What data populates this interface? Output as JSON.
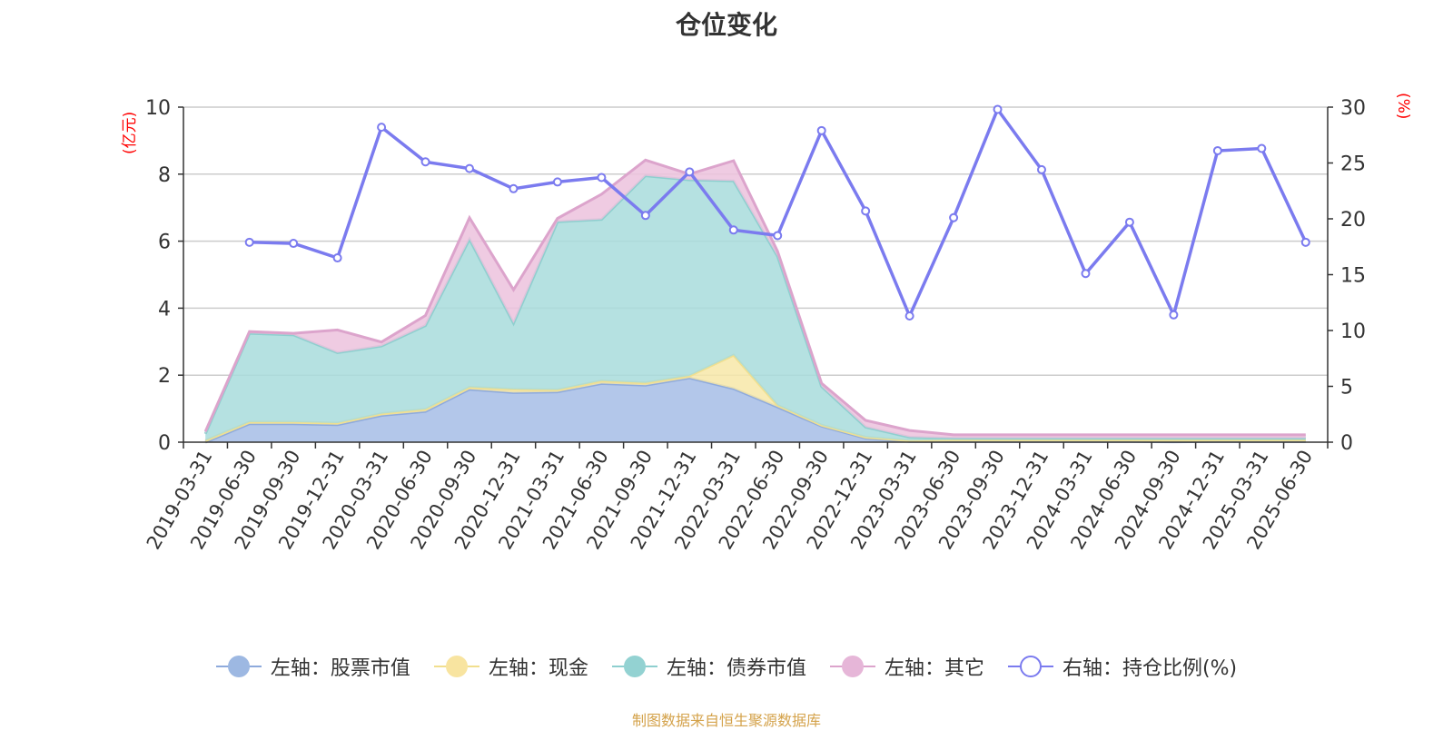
{
  "chart_data": {
    "type": "area",
    "title": "仓位变化",
    "left_unit": "(亿元)",
    "right_unit": "(%)",
    "categories": [
      "2019-03-31",
      "2019-06-30",
      "2019-09-30",
      "2019-12-31",
      "2020-03-31",
      "2020-06-30",
      "2020-09-30",
      "2020-12-31",
      "2021-03-31",
      "2021-06-30",
      "2021-09-30",
      "2021-12-31",
      "2022-03-31",
      "2022-06-30",
      "2022-09-30",
      "2022-12-31",
      "2023-03-31",
      "2023-06-30",
      "2023-09-30",
      "2023-12-31",
      "2024-03-31",
      "2024-06-30",
      "2024-09-30",
      "2024-12-31",
      "2025-03-31",
      "2025-06-30"
    ],
    "left_axis": {
      "min": 0,
      "max": 10,
      "ticks": [
        "0",
        "2",
        "4",
        "6",
        "8",
        "10"
      ]
    },
    "right_axis": {
      "min": 0,
      "max": 30,
      "ticks": [
        "0",
        "5",
        "10",
        "15",
        "20",
        "25",
        "30"
      ]
    },
    "series": [
      {
        "name": "左轴：股票市值",
        "axis": "left",
        "kind": "area",
        "color": "#a6bde6",
        "values": [
          0,
          0.55,
          0.55,
          0.52,
          0.8,
          0.92,
          1.58,
          1.48,
          1.5,
          1.75,
          1.7,
          1.92,
          1.6,
          1.05,
          0.48,
          0.12,
          0.02,
          0.02,
          0.02,
          0.02,
          0.02,
          0.02,
          0.01,
          0.02,
          0.02,
          0.02
        ]
      },
      {
        "name": "左轴：现金",
        "axis": "left",
        "kind": "area",
        "color": "#f7e8a8",
        "values": [
          0.05,
          0.05,
          0.05,
          0.05,
          0.05,
          0.06,
          0.06,
          0.1,
          0.06,
          0.08,
          0.07,
          0.06,
          1.0,
          0.05,
          0.03,
          0.03,
          0.03,
          0.05,
          0.05,
          0.05,
          0.05,
          0.05,
          0.06,
          0.05,
          0.05,
          0.05
        ]
      },
      {
        "name": "左轴：债券市值",
        "axis": "left",
        "kind": "area",
        "color": "#a8dcdc",
        "values": [
          0.2,
          2.65,
          2.6,
          2.1,
          2.02,
          2.5,
          4.42,
          1.97,
          5.02,
          4.82,
          6.18,
          5.85,
          5.2,
          4.45,
          1.15,
          0.3,
          0.1,
          0.05,
          0.05,
          0.05,
          0.05,
          0.05,
          0.05,
          0.05,
          0.05,
          0.05
        ]
      },
      {
        "name": "左轴：其它",
        "axis": "left",
        "kind": "area",
        "color": "#ecc2dd",
        "values": [
          0.07,
          0.05,
          0.05,
          0.68,
          0.12,
          0.3,
          0.64,
          1.0,
          0.1,
          0.75,
          0.47,
          0.17,
          0.6,
          0.15,
          0.1,
          0.2,
          0.2,
          0.1,
          0.1,
          0.1,
          0.1,
          0.1,
          0.1,
          0.1,
          0.1,
          0.1
        ]
      },
      {
        "name": "右轴：持仓比例(%)",
        "axis": "right",
        "kind": "line",
        "color": "#7b7bef",
        "values": [
          null,
          17.9,
          17.8,
          16.5,
          28.2,
          25.1,
          24.5,
          22.7,
          23.3,
          23.7,
          20.3,
          24.2,
          19.0,
          18.5,
          27.9,
          20.7,
          11.3,
          20.1,
          29.8,
          24.4,
          15.1,
          19.7,
          11.4,
          26.1,
          26.3,
          17.9
        ]
      }
    ],
    "grid": true,
    "legend_position": "bottom"
  },
  "footer": "制图数据来自恒生聚源数据库"
}
